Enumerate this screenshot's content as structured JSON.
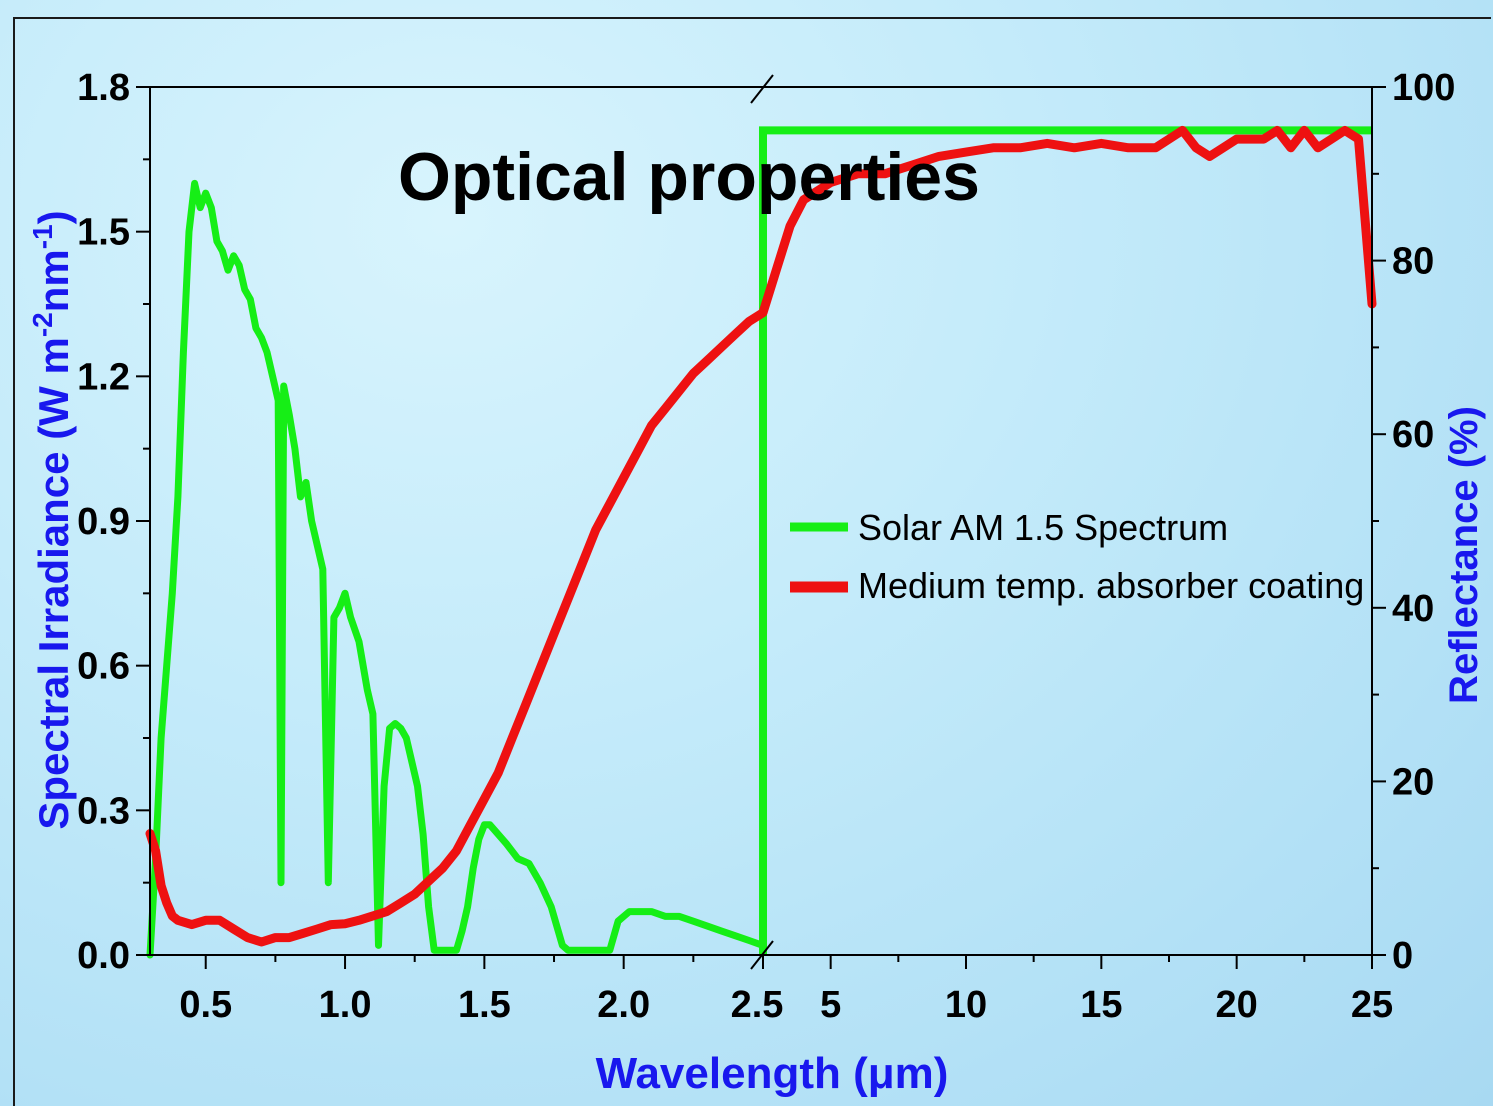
{
  "chart_data": {
    "type": "line",
    "title": "Optical properties",
    "xlabel": "Wavelength (μm)",
    "ylabel_left": "Spectral Irradiance (W m-2nm-1)",
    "ylabel_right": "Reflectance (%)",
    "x_axis": {
      "broken": true,
      "segment1": {
        "range": [
          0.3,
          2.5
        ],
        "ticks": [
          "0.5",
          "1.0",
          "1.5",
          "2.0",
          "2.5"
        ]
      },
      "segment2": {
        "range": [
          2.5,
          25
        ],
        "ticks": [
          "5",
          "10",
          "15",
          "20",
          "25"
        ]
      }
    },
    "y_left": {
      "range": [
        0,
        1.8
      ],
      "ticks": [
        "0.0",
        "0.3",
        "0.6",
        "0.9",
        "1.2",
        "1.5",
        "1.8"
      ]
    },
    "y_right": {
      "range": [
        0,
        100
      ],
      "ticks": [
        "0",
        "20",
        "40",
        "60",
        "80",
        "100"
      ]
    },
    "legend_position": "center-right",
    "series": [
      {
        "name": "Solar AM 1.5 Spectrum",
        "axis": "left",
        "color": "#16ee16",
        "x": [
          0.3,
          0.32,
          0.34,
          0.36,
          0.38,
          0.4,
          0.42,
          0.44,
          0.46,
          0.48,
          0.5,
          0.52,
          0.54,
          0.56,
          0.58,
          0.6,
          0.62,
          0.64,
          0.66,
          0.68,
          0.7,
          0.72,
          0.74,
          0.76,
          0.77,
          0.78,
          0.8,
          0.82,
          0.84,
          0.86,
          0.88,
          0.9,
          0.92,
          0.94,
          0.96,
          0.98,
          1.0,
          1.02,
          1.05,
          1.08,
          1.1,
          1.12,
          1.14,
          1.16,
          1.18,
          1.2,
          1.22,
          1.24,
          1.26,
          1.28,
          1.3,
          1.32,
          1.34,
          1.36,
          1.38,
          1.4,
          1.42,
          1.44,
          1.46,
          1.48,
          1.5,
          1.52,
          1.55,
          1.58,
          1.62,
          1.66,
          1.7,
          1.74,
          1.78,
          1.8,
          1.82,
          1.85,
          1.9,
          1.95,
          1.98,
          2.0,
          2.02,
          2.05,
          2.1,
          2.15,
          2.2,
          2.25,
          2.3,
          2.35,
          2.4,
          2.45,
          2.5
        ],
        "y": [
          0.0,
          0.2,
          0.45,
          0.6,
          0.75,
          0.95,
          1.25,
          1.5,
          1.6,
          1.55,
          1.58,
          1.55,
          1.48,
          1.46,
          1.42,
          1.45,
          1.43,
          1.38,
          1.36,
          1.3,
          1.28,
          1.25,
          1.2,
          1.15,
          0.15,
          1.18,
          1.12,
          1.05,
          0.95,
          0.98,
          0.9,
          0.85,
          0.8,
          0.15,
          0.7,
          0.72,
          0.75,
          0.7,
          0.65,
          0.55,
          0.5,
          0.02,
          0.35,
          0.47,
          0.48,
          0.47,
          0.45,
          0.4,
          0.35,
          0.25,
          0.1,
          0.01,
          0.01,
          0.01,
          0.01,
          0.01,
          0.05,
          0.1,
          0.18,
          0.24,
          0.27,
          0.27,
          0.25,
          0.23,
          0.2,
          0.19,
          0.15,
          0.1,
          0.02,
          0.01,
          0.01,
          0.01,
          0.01,
          0.01,
          0.07,
          0.08,
          0.09,
          0.09,
          0.09,
          0.08,
          0.08,
          0.07,
          0.06,
          0.05,
          0.04,
          0.03,
          0.02
        ]
      },
      {
        "name": "Medium temp. absorber coating",
        "axis": "right",
        "color": "#ee1111",
        "x": [
          0.3,
          0.32,
          0.34,
          0.36,
          0.38,
          0.4,
          0.45,
          0.5,
          0.55,
          0.6,
          0.65,
          0.7,
          0.75,
          0.8,
          0.85,
          0.9,
          0.95,
          1.0,
          1.05,
          1.1,
          1.15,
          1.2,
          1.25,
          1.3,
          1.35,
          1.4,
          1.45,
          1.5,
          1.55,
          1.6,
          1.65,
          1.7,
          1.75,
          1.8,
          1.85,
          1.9,
          1.95,
          2.0,
          2.05,
          2.1,
          2.15,
          2.2,
          2.25,
          2.3,
          2.35,
          2.4,
          2.45,
          2.5,
          3.0,
          3.5,
          4.0,
          4.5,
          5.0,
          6.0,
          7.0,
          8.0,
          9.0,
          10.0,
          11.0,
          12.0,
          13.0,
          14.0,
          15.0,
          16.0,
          17.0,
          17.5,
          18.0,
          18.5,
          19.0,
          19.5,
          20.0,
          21.0,
          21.5,
          22.0,
          22.5,
          23.0,
          23.5,
          24.0,
          24.5,
          25.0
        ],
        "y": [
          14,
          12,
          8,
          6,
          4.5,
          4,
          3.5,
          4,
          4,
          3,
          2,
          1.5,
          2,
          2,
          2.5,
          3,
          3.5,
          3.6,
          4,
          4.5,
          5,
          6,
          7,
          8.5,
          10,
          12,
          15,
          18,
          21,
          25,
          29,
          33,
          37,
          41,
          45,
          49,
          52,
          55,
          58,
          61,
          63,
          65,
          67,
          68.5,
          70,
          71.5,
          73,
          74,
          79,
          84,
          87,
          88,
          89,
          90,
          90,
          91,
          92,
          92.5,
          93,
          93,
          93.5,
          93,
          93.5,
          93,
          93,
          94,
          95,
          93,
          92,
          93,
          94,
          94,
          95,
          93,
          95,
          93,
          94,
          95,
          94,
          75
        ]
      }
    ],
    "step_line": {
      "series": "Solar AM 1.5 Spectrum",
      "x": [
        2.5,
        2.5,
        25
      ],
      "y_right": [
        0,
        95,
        95
      ]
    }
  }
}
